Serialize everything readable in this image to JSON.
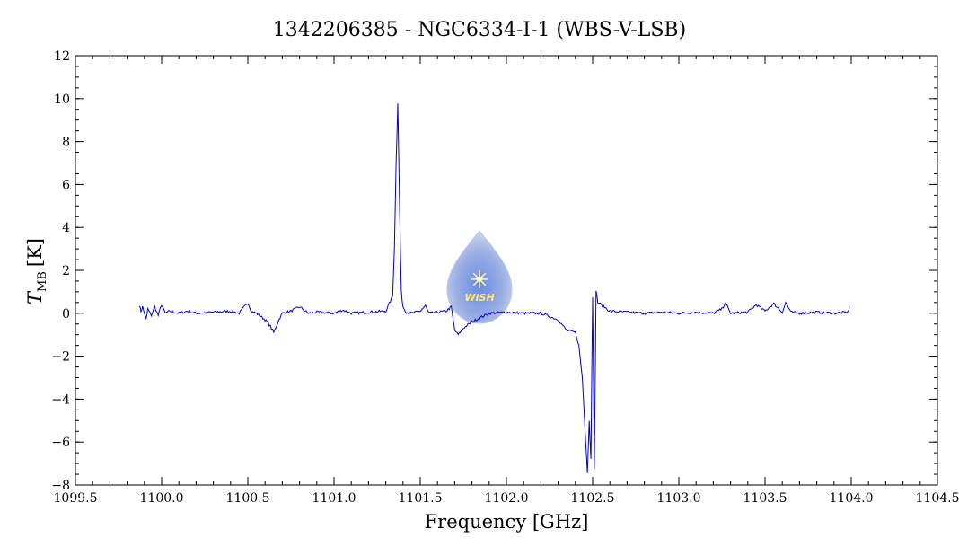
{
  "chart_data": {
    "type": "line",
    "title": "1342206385 - NGC6334-I-1 (WBS-V-LSB)",
    "xlabel": "Frequency [GHz]",
    "ylabel_main": "T",
    "ylabel_sub": "MB",
    "ylabel_unit": "[K]",
    "xlim": [
      1099.5,
      1104.5
    ],
    "ylim": [
      -8,
      12
    ],
    "x_ticks": [
      1099.5,
      1100.0,
      1100.5,
      1101.0,
      1101.5,
      1102.0,
      1102.5,
      1103.0,
      1103.5,
      1104.0,
      1104.5
    ],
    "x_tick_labels": [
      "1099.5",
      "1100.0",
      "1100.5",
      "1101.0",
      "1101.5",
      "1102.0",
      "1102.5",
      "1103.0",
      "1103.5",
      "1104.0",
      "1104.5"
    ],
    "y_ticks": [
      -8,
      -6,
      -4,
      -2,
      0,
      2,
      4,
      6,
      8,
      10,
      12
    ],
    "y_tick_labels": [
      "−8",
      "−6",
      "−4",
      "−2",
      "0",
      "2",
      "4",
      "6",
      "8",
      "10",
      "12"
    ],
    "grid": false,
    "series": [
      {
        "color": "#0000cc",
        "x": [
          1099.87,
          1099.88,
          1099.89,
          1099.9,
          1099.91,
          1099.92,
          1099.94,
          1099.96,
          1099.98,
          1100.0,
          1100.02,
          1100.05,
          1100.1,
          1100.15,
          1100.2,
          1100.3,
          1100.4,
          1100.45,
          1100.5,
          1100.52,
          1100.55,
          1100.6,
          1100.63,
          1100.65,
          1100.68,
          1100.7,
          1100.75,
          1100.8,
          1100.85,
          1100.9,
          1101.0,
          1101.05,
          1101.1,
          1101.2,
          1101.3,
          1101.34,
          1101.35,
          1101.36,
          1101.37,
          1101.38,
          1101.39,
          1101.4,
          1101.42,
          1101.45,
          1101.5,
          1101.53,
          1101.55,
          1101.6,
          1101.65,
          1101.68,
          1101.7,
          1101.72,
          1101.75,
          1101.8,
          1101.85,
          1101.9,
          1102.0,
          1102.1,
          1102.2,
          1102.3,
          1102.35,
          1102.4,
          1102.42,
          1102.44,
          1102.46,
          1102.47,
          1102.48,
          1102.49,
          1102.5,
          1102.51,
          1102.52,
          1102.53,
          1102.55,
          1102.6,
          1102.7,
          1102.8,
          1102.9,
          1103.0,
          1103.1,
          1103.2,
          1103.25,
          1103.27,
          1103.3,
          1103.4,
          1103.45,
          1103.5,
          1103.55,
          1103.6,
          1103.62,
          1103.65,
          1103.7,
          1103.8,
          1103.9,
          1103.98,
          1103.99
        ],
        "y": [
          0.4,
          0.1,
          0.3,
          0.0,
          -0.3,
          0.2,
          -0.1,
          0.3,
          -0.1,
          0.4,
          0.0,
          0.1,
          0.0,
          0.1,
          0.0,
          0.05,
          0.1,
          0.0,
          0.5,
          0.1,
          0.0,
          -0.3,
          -0.6,
          -0.9,
          -0.3,
          0.0,
          0.1,
          0.3,
          0.0,
          0.05,
          0.0,
          0.15,
          0.0,
          0.05,
          0.1,
          0.8,
          3.0,
          7.0,
          9.8,
          5.0,
          1.0,
          0.3,
          0.05,
          0.0,
          0.1,
          0.35,
          0.0,
          0.05,
          0.1,
          0.3,
          -0.8,
          -1.0,
          -0.7,
          -0.4,
          -0.2,
          0.0,
          0.05,
          0.0,
          0.0,
          -0.3,
          -0.8,
          -0.9,
          -1.5,
          -3.0,
          -6.0,
          -7.4,
          -5.0,
          -6.8,
          0.8,
          -7.3,
          1.1,
          0.5,
          0.4,
          0.1,
          0.05,
          0.0,
          0.05,
          0.0,
          0.05,
          0.0,
          0.2,
          0.5,
          0.0,
          0.05,
          0.4,
          0.1,
          0.45,
          0.05,
          0.5,
          0.05,
          0.0,
          0.05,
          0.0,
          0.05,
          0.3
        ]
      }
    ]
  },
  "logo": {
    "text": "WISH"
  }
}
